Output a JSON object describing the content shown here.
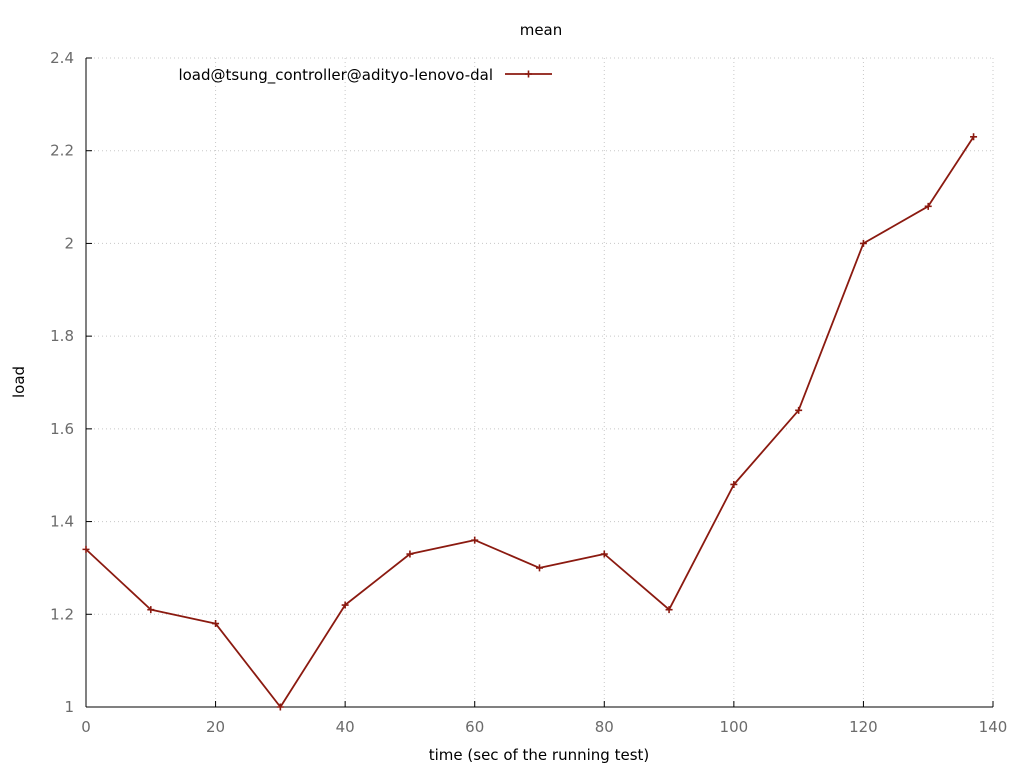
{
  "chart_data": {
    "type": "line",
    "title": "mean",
    "xlabel": "time (sec of the running test)",
    "ylabel": "load",
    "xlim": [
      0,
      140
    ],
    "ylim": [
      1,
      2.4
    ],
    "x_ticks": [
      0,
      20,
      40,
      60,
      80,
      100,
      120,
      140
    ],
    "y_ticks": [
      1,
      1.2,
      1.4,
      1.6,
      1.8,
      2,
      2.2,
      2.4
    ],
    "x_tick_labels": [
      "0",
      "20",
      "40",
      "60",
      "80",
      "100",
      "120",
      "140"
    ],
    "y_tick_labels": [
      "1",
      "1.2",
      "1.4",
      "1.6",
      "1.8",
      "2",
      "2.2",
      "2.4"
    ],
    "grid": true,
    "legend_position": "top-left",
    "series": [
      {
        "name": "load@tsung_controller@adityo-lenovo-dal",
        "color": "#8b1a10",
        "marker": "plus",
        "x": [
          0,
          10,
          20,
          30,
          40,
          50,
          60,
          70,
          80,
          90,
          100,
          110,
          120,
          130,
          137
        ],
        "y": [
          1.34,
          1.21,
          1.18,
          1.0,
          1.22,
          1.33,
          1.36,
          1.3,
          1.33,
          1.21,
          1.48,
          1.64,
          2.0,
          2.08,
          2.23
        ]
      }
    ]
  }
}
